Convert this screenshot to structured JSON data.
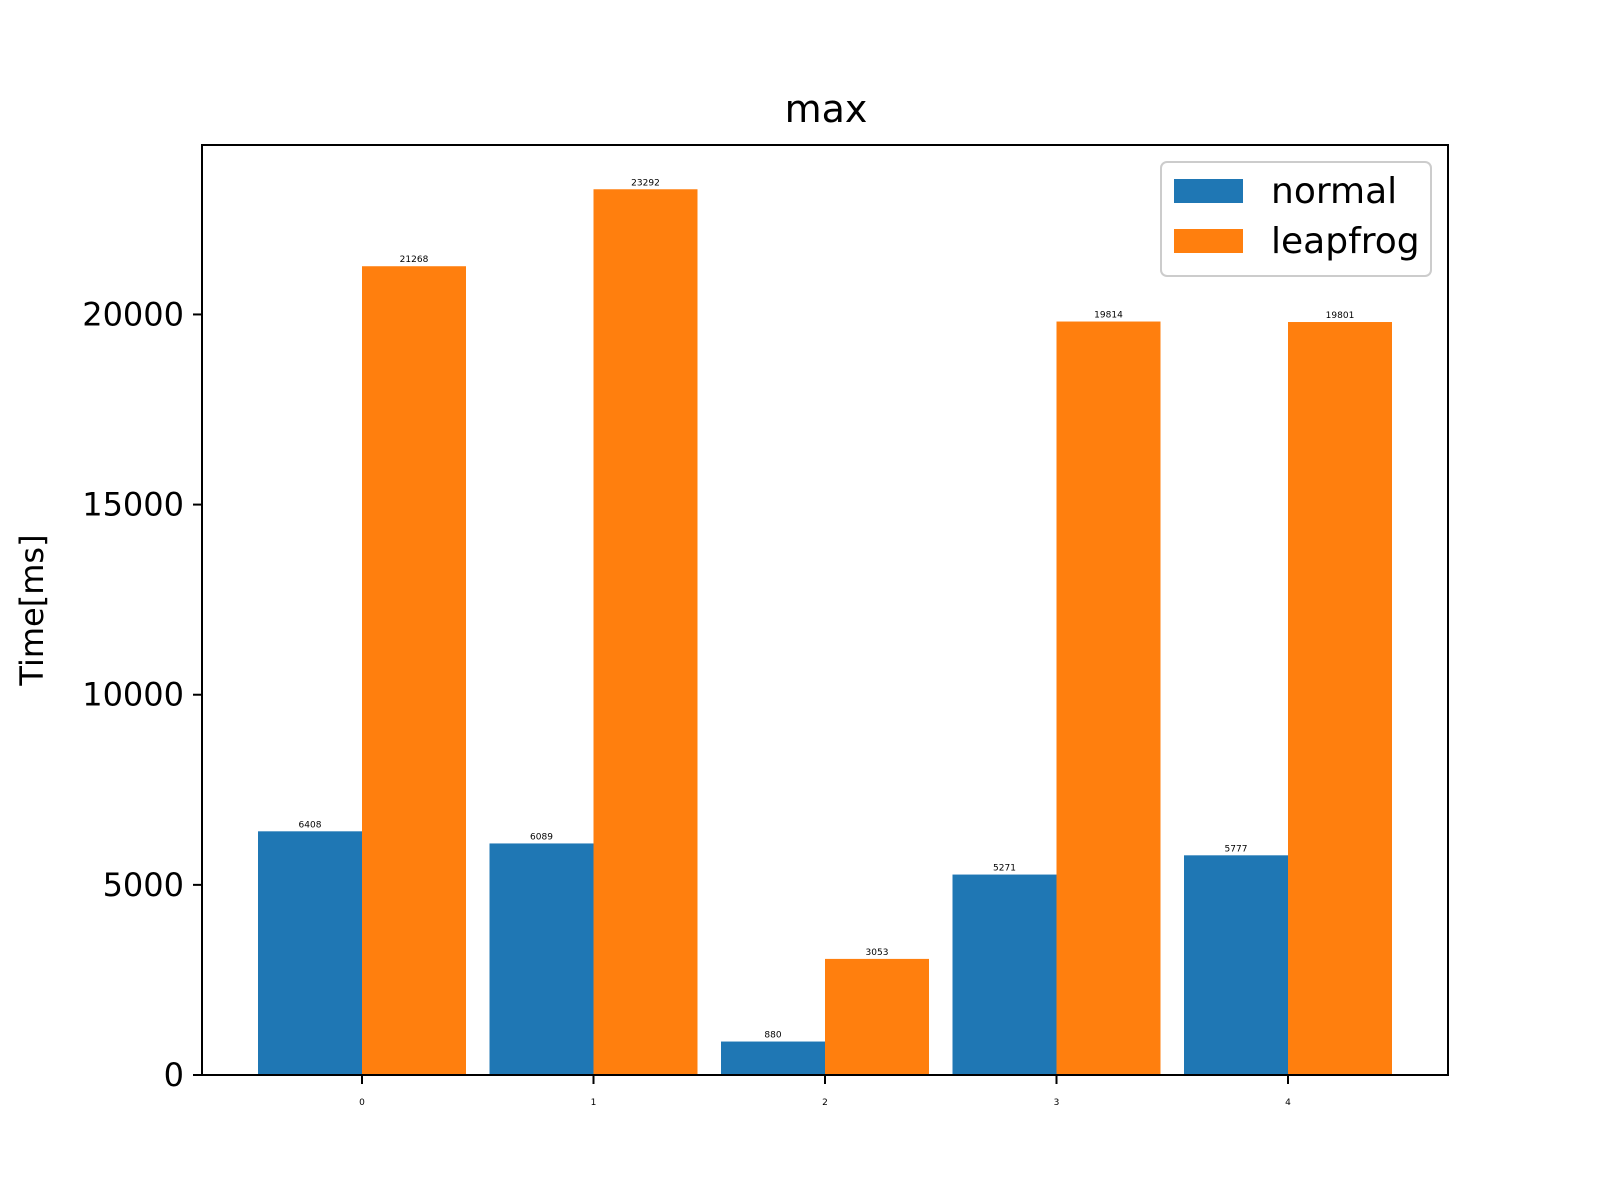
{
  "chart_data": {
    "type": "bar",
    "title": "max",
    "xlabel": "",
    "ylabel": "Time[ms]",
    "categories": [
      "0",
      "1",
      "2",
      "3",
      "4"
    ],
    "series": [
      {
        "name": "normal",
        "color": "#1f77b4",
        "values": [
          6408,
          6089,
          880,
          5271,
          5777
        ]
      },
      {
        "name": "leapfrog",
        "color": "#ff7f0e",
        "values": [
          21268,
          23292,
          3053,
          19814,
          19801
        ]
      }
    ],
    "ylim": [
      0,
      24456
    ],
    "yticks": [
      0,
      5000,
      10000,
      15000,
      20000
    ],
    "ytick_labels": [
      "0",
      "5000",
      "10000",
      "15000",
      "20000"
    ],
    "legend_position": "top-right",
    "grid": false,
    "data_labels": true
  }
}
